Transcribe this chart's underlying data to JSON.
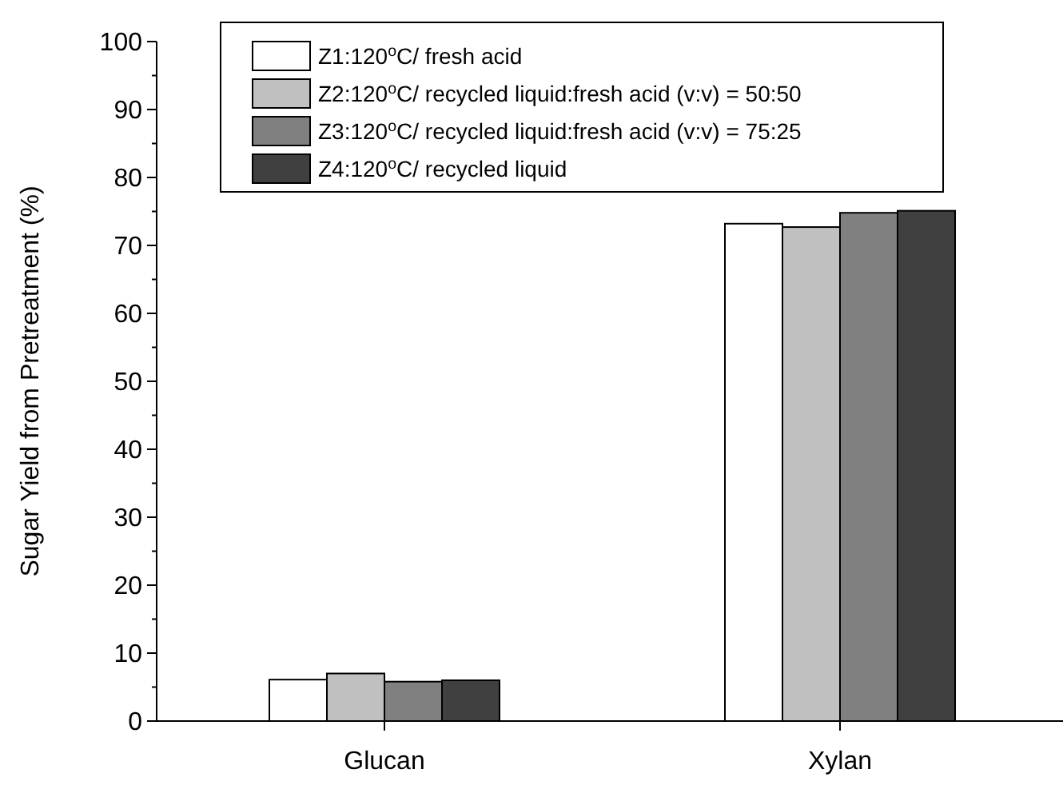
{
  "chart_data": {
    "type": "bar",
    "ylabel": "Sugar Yield from Pretreatment (%)",
    "categories": [
      "Glucan",
      "Xylan"
    ],
    "series": [
      {
        "name": "Z1:120$^{o}$C/ fresh acid",
        "color": "#ffffff",
        "values": [
          6.1,
          73.2
        ]
      },
      {
        "name": "Z2:120$^{o}$C/ recycled liquid:fresh acid (v:v) = 50:50",
        "color": "#c0c0c0",
        "values": [
          7.0,
          72.7
        ]
      },
      {
        "name": "Z3:120$^{o}$C/ recycled liquid:fresh acid (v:v) = 75:25",
        "color": "#808080",
        "values": [
          5.8,
          74.8
        ]
      },
      {
        "name": "Z4:120$^{o}$C/ recycled liquid",
        "color": "#404040",
        "values": [
          6.0,
          75.1
        ]
      }
    ],
    "ylim": [
      0,
      100
    ],
    "yticks": [
      0,
      10,
      20,
      30,
      40,
      50,
      60,
      70,
      80,
      90,
      100
    ],
    "legend": "top left"
  }
}
